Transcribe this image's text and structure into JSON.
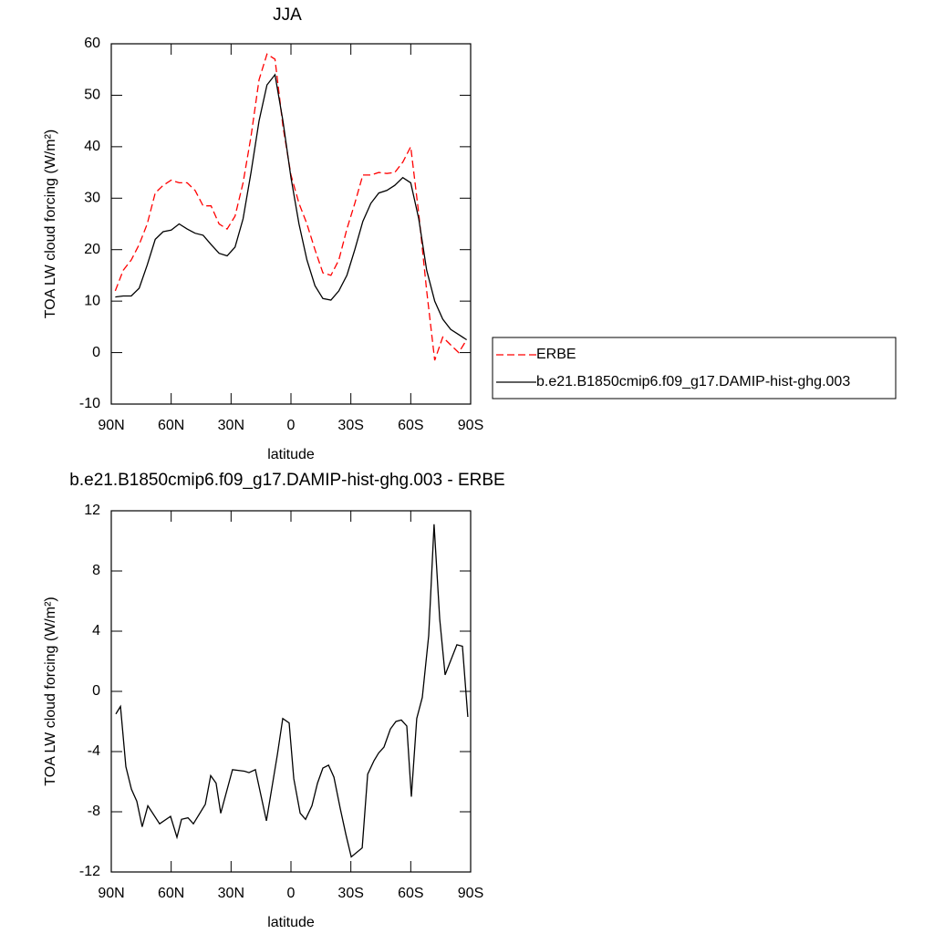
{
  "chart_data": [
    {
      "type": "line",
      "title": "JJA",
      "x_label": "latitude",
      "y_label": "TOA LW cloud forcing (W/m²)",
      "x": [
        88,
        84,
        80,
        76,
        72,
        68,
        64,
        60,
        56,
        52,
        48,
        44,
        40,
        36,
        32,
        28,
        24,
        20,
        16,
        12,
        8,
        4,
        0,
        -4,
        -8,
        -12,
        -16,
        -20,
        -24,
        -28,
        -32,
        -36,
        -40,
        -44,
        -48,
        -52,
        -56,
        -60,
        -64,
        -68,
        -72,
        -76,
        -80,
        -84,
        -88
      ],
      "series": [
        {
          "name": "ERBE",
          "color": "#ff0000",
          "dashed": true,
          "values": [
            12,
            16,
            18,
            21,
            25,
            31,
            32.5,
            33.5,
            33,
            33,
            31.5,
            28.5,
            28.5,
            25,
            24,
            26.5,
            33,
            42,
            53,
            58,
            57,
            44,
            34.5,
            29,
            25,
            20,
            15.5,
            15,
            18,
            24,
            29,
            34.5,
            34.5,
            35,
            34.8,
            35,
            37,
            40,
            27,
            12,
            -1.5,
            3,
            1.5,
            0,
            2.5
          ]
        },
        {
          "name": "b.e21.B1850cmip6.f09_g17.DAMIP-hist-ghg.003",
          "color": "#000000",
          "dashed": false,
          "values": [
            10.8,
            11,
            11,
            12.5,
            17,
            22,
            23.5,
            23.8,
            25,
            24,
            23.2,
            22.8,
            21,
            19.3,
            18.8,
            20.5,
            26,
            35,
            45,
            52,
            54,
            45,
            34,
            25,
            18,
            13,
            10.5,
            10.2,
            12,
            15,
            20,
            25.5,
            29,
            31,
            31.5,
            32.5,
            34,
            33,
            26,
            16,
            10,
            6.5,
            4.5,
            3.5,
            2.5
          ]
        }
      ],
      "xlim": [
        90,
        -90
      ],
      "xticks": [
        {
          "value": 90,
          "label": "90N"
        },
        {
          "value": 60,
          "label": "60N"
        },
        {
          "value": 30,
          "label": "30N"
        },
        0,
        {
          "value": -30,
          "label": "30S"
        },
        {
          "value": -60,
          "label": "60S"
        },
        {
          "value": -90,
          "label": "90S"
        }
      ],
      "ylim": [
        -10,
        60
      ],
      "yticks": [
        -10,
        0,
        10,
        20,
        30,
        40,
        50,
        60
      ],
      "legend": "right"
    },
    {
      "type": "line",
      "title": "b.e21.B1850cmip6.f09_g17.DAMIP-hist-ghg.003 - ERBE",
      "x_label": "latitude",
      "y_label": "TOA LW cloud forcing (W/m²)",
      "x": [
        87.7,
        85.4,
        82.7,
        79.9,
        77.2,
        74.5,
        71.7,
        65.8,
        60.3,
        57.1,
        54.8,
        51.6,
        48.9,
        42.9,
        40.2,
        37.5,
        35.2,
        29.3,
        23.3,
        21.0,
        17.8,
        12.3,
        6.8,
        4.1,
        0.9,
        -1.4,
        -4.6,
        -7.3,
        -10.5,
        -13.3,
        -16.0,
        -18.8,
        -21.5,
        -24.7,
        -27.5,
        -30.2,
        -35.7,
        -38.4,
        -41.6,
        -43.9,
        -46.6,
        -49.8,
        -52.6,
        -55.3,
        -58.0,
        -60.3,
        -63.0,
        -65.8,
        -69.0,
        -71.7,
        -74.5,
        -77.2,
        -83.1,
        -85.9,
        -88.6
      ],
      "series": [
        {
          "color": "#000000",
          "dashed": false,
          "values": [
            -1.5,
            -1.0,
            -5,
            -6.5,
            -7.3,
            -9,
            -7.6,
            -8.8,
            -8.3,
            -9.7,
            -8.5,
            -8.4,
            -8.8,
            -7.5,
            -5.6,
            -6.1,
            -8.1,
            -5.2,
            -5.3,
            -5.4,
            -5.2,
            -8.6,
            -4.2,
            -1.8,
            -2.1,
            -5.8,
            -8.1,
            -8.5,
            -7.6,
            -6.1,
            -5.1,
            -4.9,
            -5.7,
            -7.8,
            -9.5,
            -11,
            -10.4,
            -5.5,
            -4.6,
            -4.1,
            -3.7,
            -2.5,
            -2,
            -1.9,
            -2.3,
            -7,
            -1.8,
            -0.4,
            3.7,
            11.1,
            4.8,
            1.1,
            3.1,
            3.0,
            -1.7
          ]
        }
      ],
      "xlim": [
        90,
        -90
      ],
      "xticks": [
        {
          "value": 90,
          "label": "90N"
        },
        {
          "value": 60,
          "label": "60N"
        },
        {
          "value": 30,
          "label": "30N"
        },
        0,
        {
          "value": -30,
          "label": "30S"
        },
        {
          "value": -60,
          "label": "60S"
        },
        {
          "value": -90,
          "label": "90S"
        }
      ],
      "ylim": [
        -12,
        12
      ],
      "yticks": [
        -12,
        -8,
        -4,
        0,
        4,
        8,
        12
      ]
    }
  ]
}
